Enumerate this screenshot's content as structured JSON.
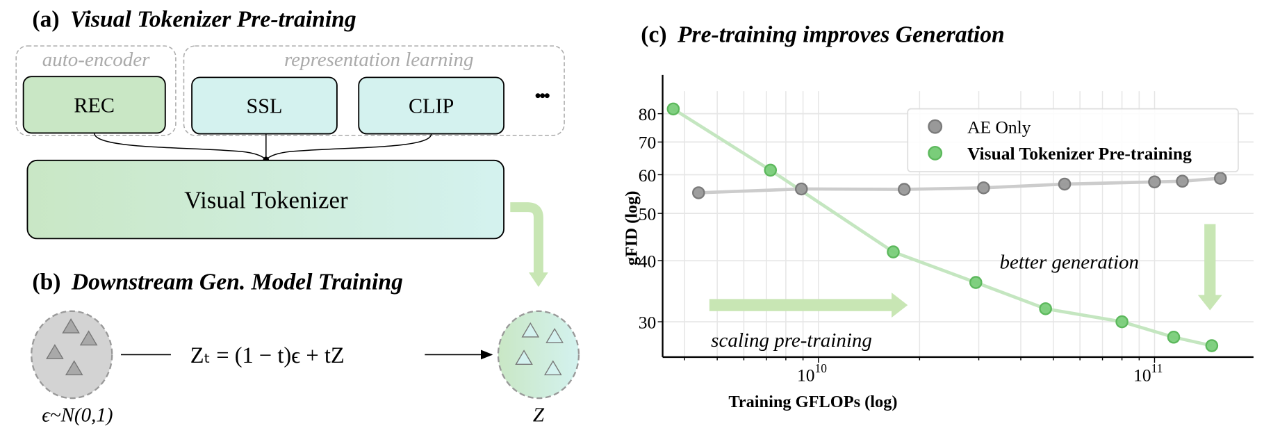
{
  "panel_a": {
    "title_prefix": "(a)",
    "title": "Visual Tokenizer Pre-training",
    "group_autoencoder": "auto-encoder",
    "group_representation": "representation learning",
    "boxes": [
      "REC",
      "SSL",
      "CLIP"
    ],
    "ellipsis": "•••",
    "tokenizer_label": "Visual Tokenizer",
    "colors": {
      "rec": "#c9e7c5",
      "repr": "#d4f2ef",
      "arrow": "#c8e6b4"
    }
  },
  "panel_b": {
    "title_prefix": "(b)",
    "title": "Downstream Gen. Model Training",
    "formula": "Zₜ = (1 − t)ϵ + tZ",
    "noise_label": "ϵ~N(0,1)",
    "target_label": "Z"
  },
  "panel_c": {
    "title_prefix": "(c)",
    "title": "Pre-training improves Generation",
    "annotation_scaling": "scaling pre-training",
    "annotation_better": "better generation"
  },
  "chart_data": {
    "type": "line",
    "title": "(c) Pre-training improves Generation",
    "xlabel": "Training GFLOPs (log)",
    "ylabel": "gFID (log)",
    "xscale": "log",
    "yscale": "log",
    "xlim": [
      3440000000.0,
      197000000000.0
    ],
    "ylim": [
      25.4,
      89
    ],
    "xticks": [
      {
        "value": 10000000000.0,
        "label": "10",
        "exp": "10"
      },
      {
        "value": 100000000000.0,
        "label": "10",
        "exp": "11"
      }
    ],
    "yticks": [
      30,
      40,
      50,
      60,
      70,
      80
    ],
    "grid": true,
    "legend_position": "top-right",
    "series": [
      {
        "name": "AE Only",
        "color": "#8c8c8c",
        "line_color": "#cccccc",
        "x": [
          4400000000.0,
          8900000000.0,
          18000000000.0,
          31000000000.0,
          54000000000.0,
          100000000000.0,
          121000000000.0,
          157000000000.0
        ],
        "y": [
          55.1,
          56.1,
          56.0,
          56.4,
          57.4,
          58.0,
          58.2,
          59.0
        ]
      },
      {
        "name": "Visual Tokenizer Pre-training",
        "color": "#6cc46c",
        "line_color": "#c4e6c0",
        "bold": true,
        "x": [
          3700000000.0,
          7200000000.0,
          16700000000.0,
          29400000000.0,
          47400000000.0,
          80000000000.0,
          114000000000.0,
          148000000000.0
        ],
        "y": [
          81.8,
          61.3,
          41.7,
          36.1,
          31.9,
          30.0,
          27.9,
          26.8
        ]
      }
    ]
  }
}
